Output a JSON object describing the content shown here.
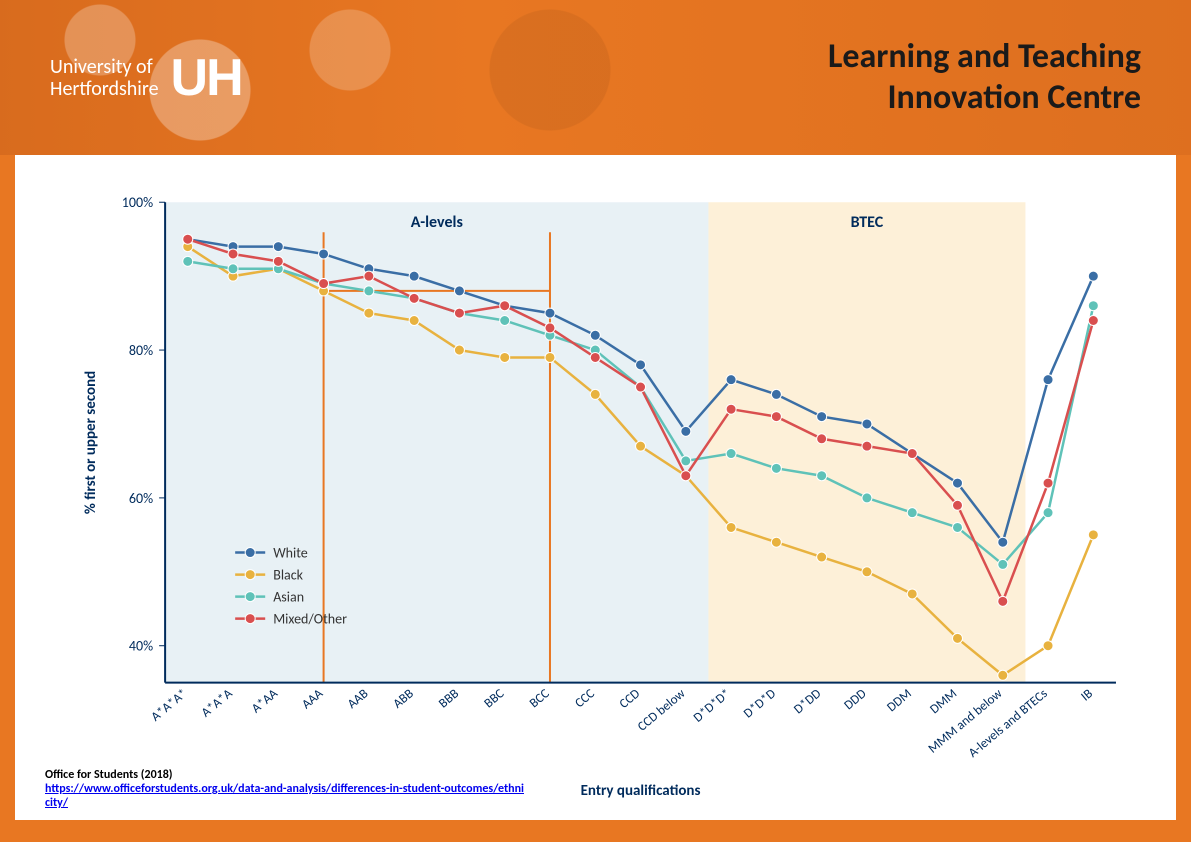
{
  "header": {
    "university_line1": "University of",
    "university_line2": "Hertfordshire",
    "logo_letters": "UH",
    "centre_line1": "Learning and Teaching",
    "centre_line2": "Innovation Centre"
  },
  "chart": {
    "type": "line",
    "y_axis_label": "% first or upper second",
    "x_axis_label": "Entry qualifications",
    "ylim": [
      35,
      100
    ],
    "yticks": [
      40,
      60,
      80,
      100
    ],
    "ytick_labels": [
      "40%",
      "60%",
      "80%",
      "100%"
    ],
    "background_regions": [
      {
        "label": "A-levels",
        "start_idx": 0,
        "end_idx": 12,
        "color": "#e8f1f5"
      },
      {
        "label": "BTEC",
        "start_idx": 12,
        "end_idx": 19,
        "color": "#fdf0d8"
      }
    ],
    "highlight_lines": {
      "indices": [
        3,
        8
      ],
      "color": "#e87722",
      "stroke_width": 2
    },
    "categories": [
      "A*A*A*",
      "A*A*A",
      "A*AA",
      "AAA",
      "AAB",
      "ABB",
      "BBB",
      "BBC",
      "BCC",
      "CCC",
      "CCD",
      "CCD below",
      "D*D*D*",
      "D*D*D",
      "D*DD",
      "DDD",
      "DDM",
      "DMM",
      "MMM and below",
      "A-levels and BTECs",
      "IB"
    ],
    "series": [
      {
        "name": "White",
        "color": "#3a6ea5",
        "values": [
          95,
          94,
          94,
          93,
          91,
          90,
          88,
          86,
          85,
          82,
          78,
          69,
          76,
          74,
          71,
          70,
          66,
          62,
          54,
          76,
          90
        ]
      },
      {
        "name": "Black",
        "color": "#e8b23f",
        "values": [
          94,
          90,
          91,
          88,
          85,
          84,
          80,
          79,
          79,
          74,
          67,
          63,
          56,
          54,
          52,
          50,
          47,
          41,
          36,
          40,
          55
        ]
      },
      {
        "name": "Asian",
        "color": "#5fc2b8",
        "values": [
          92,
          91,
          91,
          89,
          88,
          87,
          85,
          84,
          82,
          80,
          75,
          65,
          66,
          64,
          63,
          60,
          58,
          56,
          51,
          58,
          86
        ]
      },
      {
        "name": "Mixed/Other",
        "color": "#d94f4f",
        "values": [
          95,
          93,
          92,
          89,
          90,
          87,
          85,
          86,
          83,
          79,
          75,
          63,
          72,
          71,
          68,
          67,
          66,
          59,
          46,
          62,
          84
        ]
      }
    ],
    "marker_radius": 5,
    "line_width": 2.5,
    "axis_color": "#002b5c",
    "grid_color": "#cccccc"
  },
  "citation": {
    "source": "Office for Students (2018)",
    "url_text": "https://www.officeforstudents.org.uk/data-and-analysis/differences-in-student-outcomes/ethnicity/"
  }
}
